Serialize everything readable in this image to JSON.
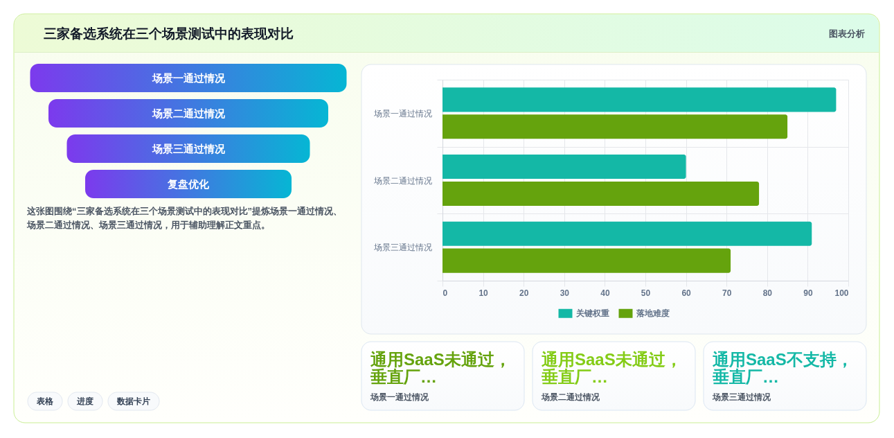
{
  "chart_data": [
    {
      "type": "other",
      "title": "三家备选系统在三个场景测试中的表现对比",
      "annotations": [
        "图表分析"
      ]
    },
    {
      "type": "other",
      "categories": [
        "场景一通过情况",
        "场景二通过情况",
        "场景三通过情况",
        "复盘优化"
      ],
      "annotations": [
        "这张图围绕“三家备选系统在三个场景测试中的表现对比”提炼场景一通过情况、场景二通过情况、场景三通过情况，用于辅助理解正文重点。",
        "表格",
        "进度",
        "数据卡片"
      ]
    },
    {
      "type": "bar",
      "orientation": "horizontal",
      "categories": [
        "场景一通过情况",
        "场景二通过情况",
        "场景三通过情况"
      ],
      "series": [
        {
          "name": "关键权重",
          "color": "#14b8a6",
          "values": [
            97,
            60,
            91
          ]
        },
        {
          "name": "落地难度",
          "color": "#65a30d",
          "values": [
            85,
            78,
            71
          ]
        }
      ],
      "xlim": [
        0,
        100
      ],
      "xticks": [
        0,
        10,
        20,
        30,
        40,
        50,
        60,
        70,
        80,
        90,
        100
      ],
      "grid": true,
      "legend": "bottom"
    },
    {
      "type": "other",
      "title": "通用SaaS未通过，垂直厂…",
      "subtitle": "场景一通过情况"
    },
    {
      "type": "other",
      "title": "通用SaaS未通过，垂直厂…",
      "subtitle": "场景二通过情况"
    },
    {
      "type": "other",
      "title": "通用SaaS不支持，垂直厂…",
      "subtitle": "场景三通过情况"
    }
  ]
}
